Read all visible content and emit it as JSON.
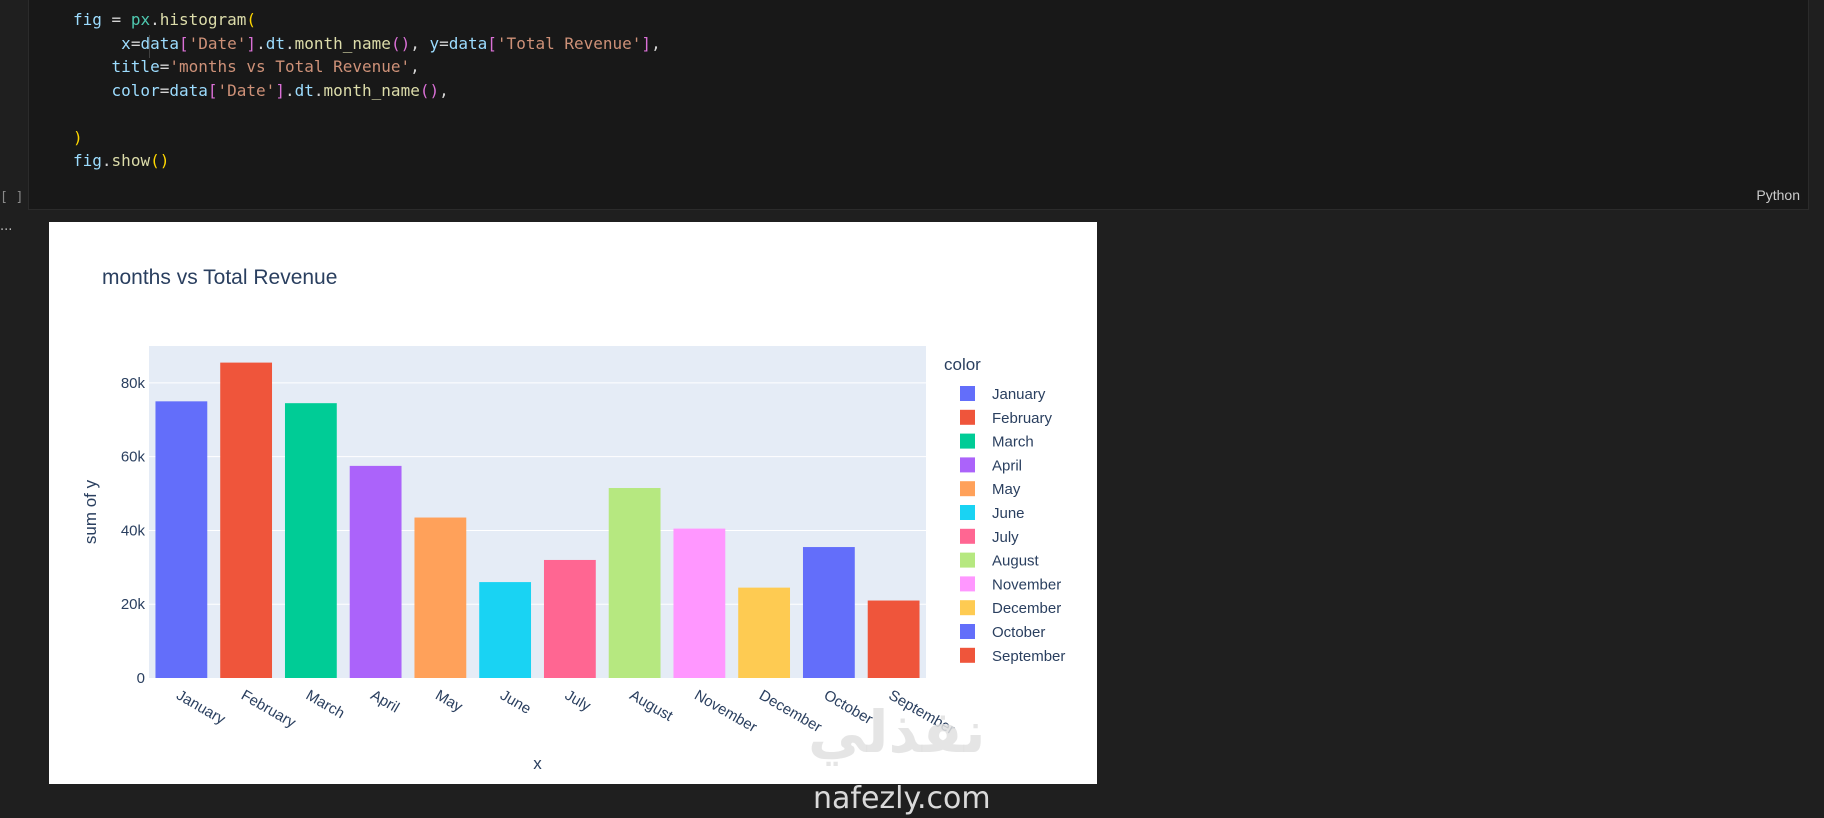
{
  "cell": {
    "code_lines": [
      "fig = px.histogram(",
      "    x=data['Date'].dt.month_name(), y=data['Total Revenue'],",
      "    title='months vs Total Revenue',",
      "    color=data['Date'].dt.month_name(),",
      "",
      ")",
      "fig.show()"
    ],
    "language": "Python",
    "exec_count": "[ ]",
    "output_marker": "..."
  },
  "chart_data": {
    "type": "bar",
    "title": "months vs Total Revenue",
    "xlabel": "x",
    "ylabel": "sum of y",
    "ylim": [
      0,
      90000
    ],
    "y_ticks": [
      0,
      20000,
      40000,
      60000,
      80000
    ],
    "y_tick_labels": [
      "0",
      "20k",
      "40k",
      "60k",
      "80k"
    ],
    "grid": true,
    "categories": [
      "January",
      "February",
      "March",
      "April",
      "May",
      "June",
      "July",
      "August",
      "November",
      "December",
      "October",
      "September"
    ],
    "values": [
      75000,
      85500,
      74500,
      57500,
      43500,
      26000,
      32000,
      51500,
      40500,
      24500,
      35500,
      21000
    ],
    "colors": [
      "#636efa",
      "#ef553b",
      "#00cc96",
      "#ab63fa",
      "#ffa15a",
      "#19d3f3",
      "#ff6692",
      "#b6e880",
      "#ff97ff",
      "#fecb52",
      "#636efa",
      "#ef553b"
    ],
    "legend": {
      "title": "color",
      "position": "right"
    }
  },
  "watermark": {
    "arabic": "نفذلي",
    "domain": "nafezly.com"
  }
}
